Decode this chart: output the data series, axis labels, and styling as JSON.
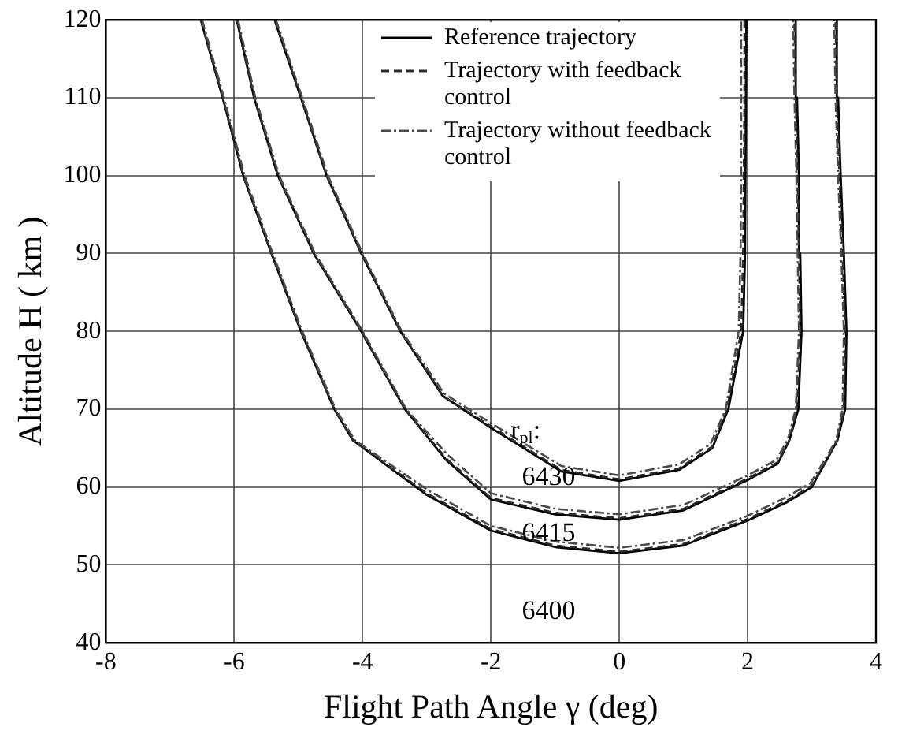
{
  "chart_data": {
    "type": "line",
    "xlabel": "Flight Path Angle γ (deg)",
    "ylabel": "Altitude H ( km )",
    "xlim": [
      -8,
      4
    ],
    "xticks": [
      -8,
      -6,
      -4,
      -2,
      0,
      2,
      4
    ],
    "ylim": [
      40,
      120
    ],
    "yticks": [
      40,
      50,
      60,
      70,
      80,
      90,
      100,
      110,
      120
    ],
    "grid": true,
    "legend": "top",
    "marker": "none",
    "series": [
      {
        "name": "Reference trajectory",
        "color": "#000000",
        "line_style": "solid",
        "x": [
          -6.52,
          -6.18,
          -5.86,
          -5.42,
          -4.96,
          -4.44,
          -4.15,
          -3.0,
          -2,
          -1,
          0,
          1,
          2,
          2.6,
          3.0,
          3.2,
          3.4,
          3.52,
          3.54,
          3.5,
          3.45,
          3.41,
          3.39,
          null,
          -5.96,
          -5.69,
          -5.32,
          -4.76,
          -4.02,
          -3.34,
          -2.7,
          -2,
          -1,
          0,
          1,
          2,
          2.47,
          2.65,
          2.79,
          2.84,
          2.82,
          2.8,
          2.77,
          2.75,
          null,
          -5.37,
          -4.96,
          -4.56,
          -4.02,
          -3.41,
          -2.75,
          -2,
          -0.9,
          0,
          0.93,
          1.45,
          1.7,
          1.93,
          1.96,
          1.98
        ],
        "values": [
          120,
          110,
          100,
          90,
          80,
          70,
          66,
          59,
          54.4,
          52.3,
          51.5,
          52.5,
          55.7,
          58,
          60,
          63,
          66,
          70,
          80,
          90,
          100,
          110,
          120,
          null,
          120,
          110,
          100,
          90,
          80,
          70,
          63.5,
          58.4,
          56.5,
          55.8,
          57,
          60.9,
          63,
          66,
          70,
          80,
          90,
          100,
          110,
          120,
          null,
          120,
          110,
          100,
          90,
          80,
          71.7,
          67.6,
          62,
          60.8,
          62.2,
          65,
          70,
          80,
          90,
          120
        ]
      },
      {
        "name": "Trajectory with feedback control",
        "color": "#2a2a2a",
        "line_style": "dashed",
        "x": [
          -6.52,
          -6.18,
          -5.86,
          -5.42,
          -4.96,
          -4.44,
          -4.15,
          -3.0,
          -2,
          -1,
          0,
          1,
          2,
          2.6,
          3.0,
          3.2,
          3.4,
          3.5,
          3.52,
          3.48,
          3.43,
          3.39,
          3.37,
          null,
          -5.96,
          -5.69,
          -5.32,
          -4.76,
          -4.02,
          -3.34,
          -2.7,
          -2,
          -1,
          0,
          1,
          2,
          2.47,
          2.65,
          2.77,
          2.82,
          2.8,
          2.78,
          2.75,
          2.73,
          null,
          -5.37,
          -4.96,
          -4.56,
          -4.02,
          -3.41,
          -2.75,
          -2,
          -0.9,
          0,
          0.93,
          1.45,
          1.68,
          1.9,
          1.93,
          1.94,
          1.95,
          1.95
        ],
        "values": [
          120,
          110,
          100,
          90,
          80,
          70,
          66,
          59.2,
          54.6,
          52.5,
          51.7,
          52.7,
          55.9,
          58.2,
          60.2,
          63,
          66,
          70,
          80,
          90,
          100,
          110,
          120,
          null,
          120,
          110,
          100,
          90,
          80,
          70,
          63.7,
          58.6,
          56.7,
          56,
          57.2,
          61.1,
          63.2,
          66,
          70,
          80,
          90,
          100,
          110,
          120,
          null,
          120,
          110,
          100,
          90,
          80,
          71.7,
          67.8,
          62.2,
          61,
          62.4,
          65.2,
          70,
          80,
          90,
          100,
          110,
          120
        ]
      },
      {
        "name": "Trajectory without feedback control",
        "color": "#4a4a4a",
        "line_style": "dotted",
        "x": [
          -6.5,
          -6.16,
          -5.84,
          -5.4,
          -4.94,
          -4.42,
          -4.12,
          -2.98,
          -2,
          -1,
          0,
          1,
          2,
          2.58,
          2.98,
          3.18,
          3.38,
          3.48,
          3.5,
          3.46,
          3.41,
          3.37,
          3.35,
          null,
          -5.94,
          -5.67,
          -5.3,
          -4.74,
          -4.0,
          -3.32,
          -2.68,
          -2,
          -1,
          0,
          1,
          2,
          2.45,
          2.63,
          2.75,
          2.8,
          2.78,
          2.76,
          2.73,
          2.71,
          null,
          -5.35,
          -4.94,
          -4.54,
          -4.0,
          -3.39,
          -2.73,
          -2,
          -0.9,
          0,
          0.93,
          1.42,
          1.66,
          1.86,
          1.89,
          1.9,
          1.9,
          1.9
        ],
        "values": [
          120,
          110,
          100,
          90,
          80,
          70,
          66,
          59.6,
          55,
          53,
          52.2,
          53.2,
          56.3,
          58.6,
          60.5,
          63.2,
          66,
          70,
          80,
          90,
          100,
          110,
          120,
          null,
          120,
          110,
          100,
          90,
          80,
          70,
          64.2,
          59.2,
          57.2,
          56.5,
          57.7,
          61.5,
          63.5,
          66.2,
          70,
          80,
          90,
          100,
          110,
          120,
          null,
          120,
          110,
          100,
          90,
          80,
          72,
          68.2,
          62.7,
          61.5,
          62.9,
          65.5,
          70,
          80,
          90,
          100,
          110,
          120
        ]
      }
    ],
    "annotations": [
      "r$_{pl}$:",
      "6430",
      "6415",
      "6400"
    ]
  }
}
